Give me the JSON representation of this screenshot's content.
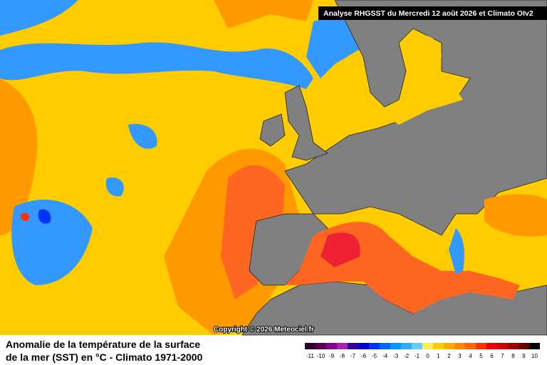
{
  "header": {
    "title": "Analyse RHGSST  du Mercredi 12 août 2026 et Climato OIv2"
  },
  "map": {
    "copyright": "Copyright © 2026 Meteociel.fr"
  },
  "footer": {
    "title_lines": [
      "Anomalie de la température de la surface",
      "de la mer (SST) en °C - Climato 1971-2000"
    ]
  },
  "legend": {
    "labels": [
      -11,
      -10,
      -9,
      -8,
      -7,
      -6,
      -5,
      -4,
      -3,
      -2,
      -1,
      0,
      1,
      2,
      3,
      4,
      5,
      6,
      7,
      8,
      9,
      10
    ],
    "colors": [
      "#2a002a",
      "#550055",
      "#880088",
      "#aa22aa",
      "#330099",
      "#0000cc",
      "#0033ff",
      "#0066ff",
      "#0099ff",
      "#33aaff",
      "#66ccff",
      "#ffee55",
      "#ffcc00",
      "#ffaa00",
      "#ff8800",
      "#ff6600",
      "#ff3300",
      "#ee0000",
      "#cc0000",
      "#990000",
      "#660000",
      "#000000"
    ]
  }
}
